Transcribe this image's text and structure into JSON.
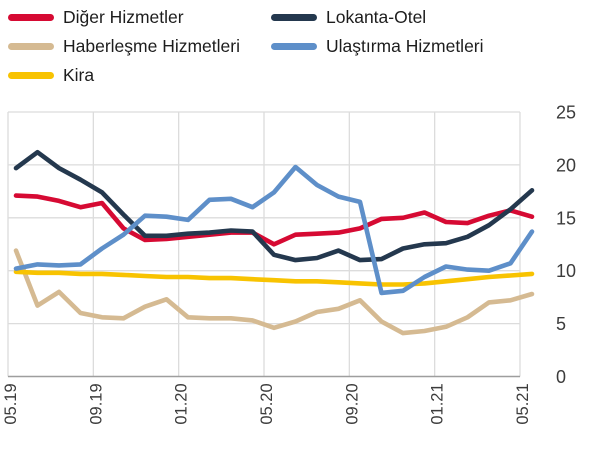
{
  "legend": {
    "items": [
      {
        "label": "Diğer Hizmetler",
        "color": "#d60a33",
        "series_index": 0
      },
      {
        "label": "Lokanta-Otel",
        "color": "#24384e",
        "series_index": 3
      },
      {
        "label": "Haberleşme Hizmetleri",
        "color": "#d5ba92",
        "series_index": 1
      },
      {
        "label": "Ulaştırma Hizmetleri",
        "color": "#5e8fc9",
        "series_index": 4
      },
      {
        "label": "Kira",
        "color": "#f8c301",
        "series_index": 2
      }
    ]
  },
  "chart_data": {
    "type": "line",
    "title": "",
    "xlabel": "",
    "ylabel": "",
    "x": [
      "05.19",
      "06.19",
      "07.19",
      "08.19",
      "09.19",
      "10.19",
      "11.19",
      "12.19",
      "01.20",
      "02.20",
      "03.20",
      "04.20",
      "05.20",
      "06.20",
      "07.20",
      "08.20",
      "09.20",
      "10.20",
      "11.20",
      "12.20",
      "01.21",
      "02.21",
      "03.21",
      "04.21",
      "05.21"
    ],
    "x_tick_labels": [
      "05.19",
      "09.19",
      "01.20",
      "05.20",
      "09.20",
      "01.21",
      "05.21"
    ],
    "y_ticks": [
      0,
      5,
      10,
      15,
      20,
      25
    ],
    "ylim": [
      0,
      25
    ],
    "grid": true,
    "legend_position": "top-left",
    "axis_color": "#9e9e9e",
    "gridline_color": "#dcdcdc",
    "tick_label_color": "#3c3c3c",
    "series": [
      {
        "name": "Diğer Hizmetler",
        "color": "#d60a33",
        "values": [
          17.1,
          17.0,
          16.6,
          16.0,
          16.4,
          14.0,
          12.9,
          13.0,
          13.2,
          13.4,
          13.6,
          13.6,
          12.5,
          13.4,
          13.5,
          13.6,
          14.0,
          14.9,
          15.0,
          15.5,
          14.6,
          14.5,
          15.2,
          15.7,
          15.1
        ]
      },
      {
        "name": "Haberleşme Hizmetleri",
        "color": "#d5ba92",
        "values": [
          11.9,
          6.7,
          8.0,
          6.0,
          5.6,
          5.5,
          6.6,
          7.3,
          5.6,
          5.5,
          5.5,
          5.3,
          4.6,
          5.2,
          6.1,
          6.4,
          7.2,
          5.2,
          4.1,
          4.3,
          4.7,
          5.6,
          7.0,
          7.2,
          7.8
        ]
      },
      {
        "name": "Kira",
        "color": "#f8c301",
        "values": [
          9.9,
          9.8,
          9.8,
          9.7,
          9.7,
          9.6,
          9.5,
          9.4,
          9.4,
          9.3,
          9.3,
          9.2,
          9.1,
          9.0,
          9.0,
          8.9,
          8.8,
          8.7,
          8.7,
          8.8,
          9.0,
          9.2,
          9.4,
          9.55,
          9.7
        ]
      },
      {
        "name": "Lokanta-Otel",
        "color": "#24384e",
        "values": [
          19.7,
          21.2,
          19.7,
          18.6,
          17.4,
          15.3,
          13.3,
          13.3,
          13.5,
          13.6,
          13.8,
          13.7,
          11.5,
          11.0,
          11.2,
          11.9,
          11.0,
          11.1,
          12.1,
          12.5,
          12.6,
          13.2,
          14.3,
          15.8,
          17.6
        ]
      },
      {
        "name": "Ulaştırma Hizmetleri",
        "color": "#5e8fc9",
        "values": [
          10.2,
          10.6,
          10.5,
          10.6,
          12.1,
          13.4,
          15.2,
          15.1,
          14.8,
          16.7,
          16.8,
          16.0,
          17.4,
          19.8,
          18.1,
          17.0,
          16.5,
          7.9,
          8.1,
          9.4,
          10.4,
          10.1,
          10.0,
          10.7,
          13.7
        ]
      }
    ]
  }
}
